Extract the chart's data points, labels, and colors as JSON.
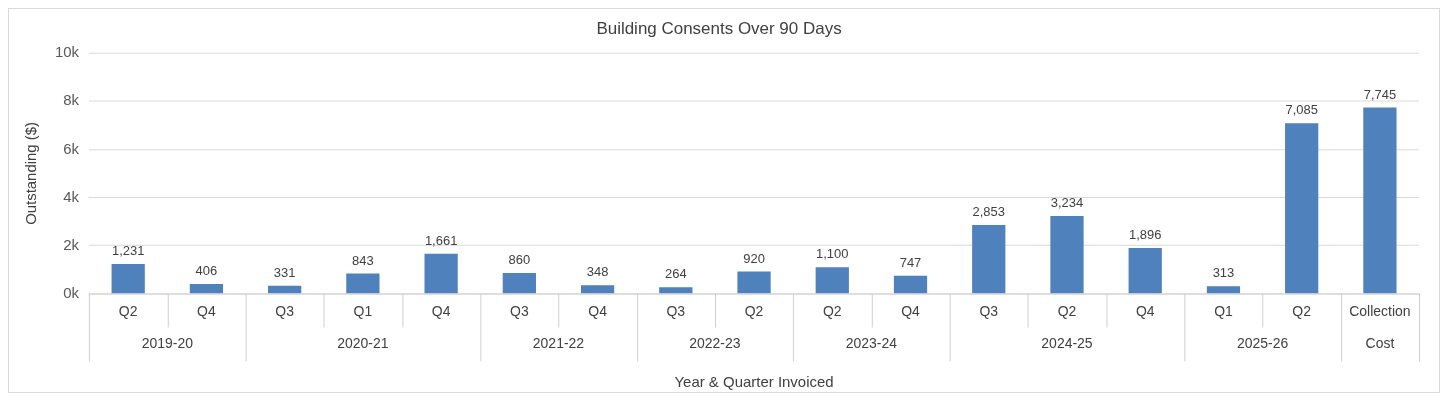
{
  "chart_data": {
    "type": "bar",
    "title": "Building Consents Over 90 Days",
    "xlabel": "Year & Quarter Invoiced",
    "ylabel": "Outstanding ($)",
    "categories": [
      [
        "Q2",
        "2019-20"
      ],
      [
        "Q4",
        null
      ],
      [
        "Q3",
        "2020-21"
      ],
      [
        "Q1",
        null
      ],
      [
        "Q4",
        null
      ],
      [
        "Q3",
        "2021-22"
      ],
      [
        "Q4",
        null
      ],
      [
        "Q3",
        "2022-23"
      ],
      [
        "Q2",
        null
      ],
      [
        "Q2",
        "2023-24"
      ],
      [
        "Q4",
        null
      ],
      [
        "Q3",
        "2024-25"
      ],
      [
        "Q2",
        null
      ],
      [
        "Q4",
        null
      ],
      [
        "Q1",
        "2025-26"
      ],
      [
        "Q2",
        null
      ],
      [
        "Collection",
        "Cost"
      ]
    ],
    "values": [
      1231,
      406,
      331,
      843,
      1661,
      860,
      348,
      264,
      920,
      1100,
      747,
      2853,
      3234,
      1896,
      313,
      7085,
      7745
    ],
    "value_labels": [
      "1,231",
      "406",
      "331",
      "843",
      "1,661",
      "860",
      "348",
      "264",
      "920",
      "1,100",
      "747",
      "2,853",
      "3,234",
      "1,896",
      "313",
      "7,085",
      "7,745"
    ],
    "color": "#4f81bd",
    "ylim": [
      0,
      10000
    ],
    "yticks": [
      {
        "value": 0,
        "label": "0k"
      },
      {
        "value": 2000,
        "label": "2k"
      },
      {
        "value": 4000,
        "label": "4k"
      },
      {
        "value": 6000,
        "label": "6k"
      },
      {
        "value": 8000,
        "label": "8k"
      },
      {
        "value": 10000,
        "label": "10k"
      }
    ],
    "grid": "y",
    "legend": false
  }
}
